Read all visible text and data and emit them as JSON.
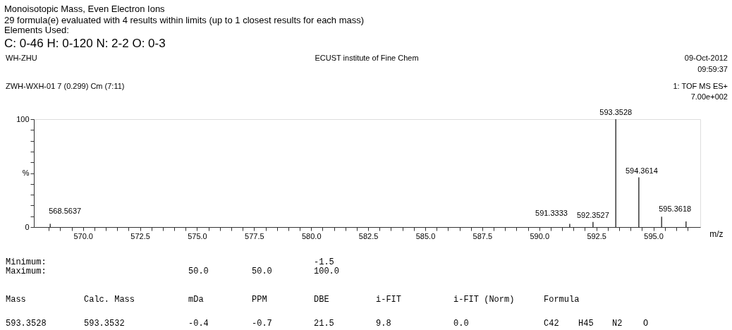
{
  "chart_data": {
    "type": "bar",
    "title": "Monoisotopic Mass, Even Electron Ions",
    "subtitle": "29 formula(e) evaluated with 4 results within limits (up to 1 closest results for each mass)",
    "xlabel": "m/z",
    "x": [
      568.5637,
      591.3333,
      592.3527,
      593.3528,
      594.3614,
      595.3618,
      596.43
    ],
    "values": [
      3,
      3,
      4.8,
      100,
      46,
      9.6,
      5.2
    ],
    "color": "#444444",
    "xlim": [
      568.0,
      596.9
    ],
    "xticks": [
      {
        "value": 568.5,
        "label": null
      },
      {
        "value": 569.0,
        "label": null
      },
      {
        "value": 569.5,
        "label": null
      },
      {
        "value": 570.0,
        "label": "570.0"
      },
      {
        "value": 570.5,
        "label": null
      },
      {
        "value": 571.0,
        "label": null
      },
      {
        "value": 571.5,
        "label": null
      },
      {
        "value": 572.0,
        "label": null
      },
      {
        "value": 572.5,
        "label": "572.5"
      },
      {
        "value": 573.0,
        "label": null
      },
      {
        "value": 573.5,
        "label": null
      },
      {
        "value": 574.0,
        "label": null
      },
      {
        "value": 574.5,
        "label": null
      },
      {
        "value": 575.0,
        "label": "575.0"
      },
      {
        "value": 575.5,
        "label": null
      },
      {
        "value": 576.0,
        "label": null
      },
      {
        "value": 576.5,
        "label": null
      },
      {
        "value": 577.0,
        "label": null
      },
      {
        "value": 577.5,
        "label": "577.5"
      },
      {
        "value": 578.0,
        "label": null
      },
      {
        "value": 578.5,
        "label": null
      },
      {
        "value": 579.0,
        "label": null
      },
      {
        "value": 579.5,
        "label": null
      },
      {
        "value": 580.0,
        "label": "580.0"
      },
      {
        "value": 580.5,
        "label": null
      },
      {
        "value": 581.0,
        "label": null
      },
      {
        "value": 581.5,
        "label": null
      },
      {
        "value": 582.0,
        "label": null
      },
      {
        "value": 582.5,
        "label": "582.5"
      },
      {
        "value": 583.0,
        "label": null
      },
      {
        "value": 583.5,
        "label": null
      },
      {
        "value": 584.0,
        "label": null
      },
      {
        "value": 584.5,
        "label": null
      },
      {
        "value": 585.0,
        "label": "585.0"
      },
      {
        "value": 585.5,
        "label": null
      },
      {
        "value": 586.0,
        "label": null
      },
      {
        "value": 586.5,
        "label": null
      },
      {
        "value": 587.0,
        "label": null
      },
      {
        "value": 587.5,
        "label": "587.5"
      },
      {
        "value": 588.0,
        "label": null
      },
      {
        "value": 588.5,
        "label": null
      },
      {
        "value": 589.0,
        "label": null
      },
      {
        "value": 589.5,
        "label": null
      },
      {
        "value": 590.0,
        "label": "590.0"
      },
      {
        "value": 590.5,
        "label": null
      },
      {
        "value": 591.0,
        "label": null
      },
      {
        "value": 591.5,
        "label": null
      },
      {
        "value": 592.0,
        "label": null
      },
      {
        "value": 592.5,
        "label": "592.5"
      },
      {
        "value": 593.0,
        "label": null
      },
      {
        "value": 593.5,
        "label": null
      },
      {
        "value": 594.0,
        "label": null
      },
      {
        "value": 594.5,
        "label": null
      },
      {
        "value": 595.0,
        "label": "595.0"
      },
      {
        "value": 595.5,
        "label": null
      },
      {
        "value": 596.0,
        "label": null
      },
      {
        "value": 596.5,
        "label": null
      }
    ],
    "ylim": [
      0,
      100
    ],
    "yticks": [
      0,
      {
        "value": 10,
        "label": null
      },
      {
        "value": 20,
        "label": null
      },
      {
        "value": 30,
        "label": null
      },
      {
        "value": 40,
        "label": null
      },
      {
        "value": 50,
        "label": "%"
      },
      {
        "value": 60,
        "label": null
      },
      {
        "value": 70,
        "label": null
      },
      {
        "value": 80,
        "label": null
      },
      {
        "value": 90,
        "label": null
      },
      100
    ],
    "grid": false,
    "annotations": [
      "Elements Used:",
      "C: 0-46   H: 0-120   N: 2-2   O: 0-3",
      "WH-ZHU",
      "ECUST institute of Fine Chem",
      "09-Oct-2012",
      "09:59:37",
      "ZWH-WXH-01 7 (0.299) Cm (7:11)",
      "1: TOF MS ES+",
      "7.00e+002",
      "Minimum:",
      "-1.5",
      "Maximum:",
      "50.0",
      "50.0",
      "100.0",
      "Mass",
      "Calc. Mass",
      "mDa",
      "PPM",
      "DBE",
      "i-FIT",
      "i-FIT (Norm)",
      "Formula",
      "593.3528",
      "593.3532",
      "-0.4",
      "-0.7",
      "21.5",
      "9.8",
      "0.0",
      "C42",
      "H45",
      "N2",
      "O",
      {
        "text": "568.5637",
        "x": 568.5637,
        "y": 3
      },
      {
        "text": "591.3333",
        "x": 591.3333,
        "y": 3
      },
      {
        "text": "592.3527",
        "x": 592.3527,
        "y": 4.8
      },
      {
        "text": "593.3528",
        "x": 593.3528,
        "y": 100
      },
      {
        "text": "594.3614",
        "x": 594.3614,
        "y": 46
      },
      {
        "text": "595.3618",
        "x": 595.3618,
        "y": 9.6
      }
    ]
  }
}
